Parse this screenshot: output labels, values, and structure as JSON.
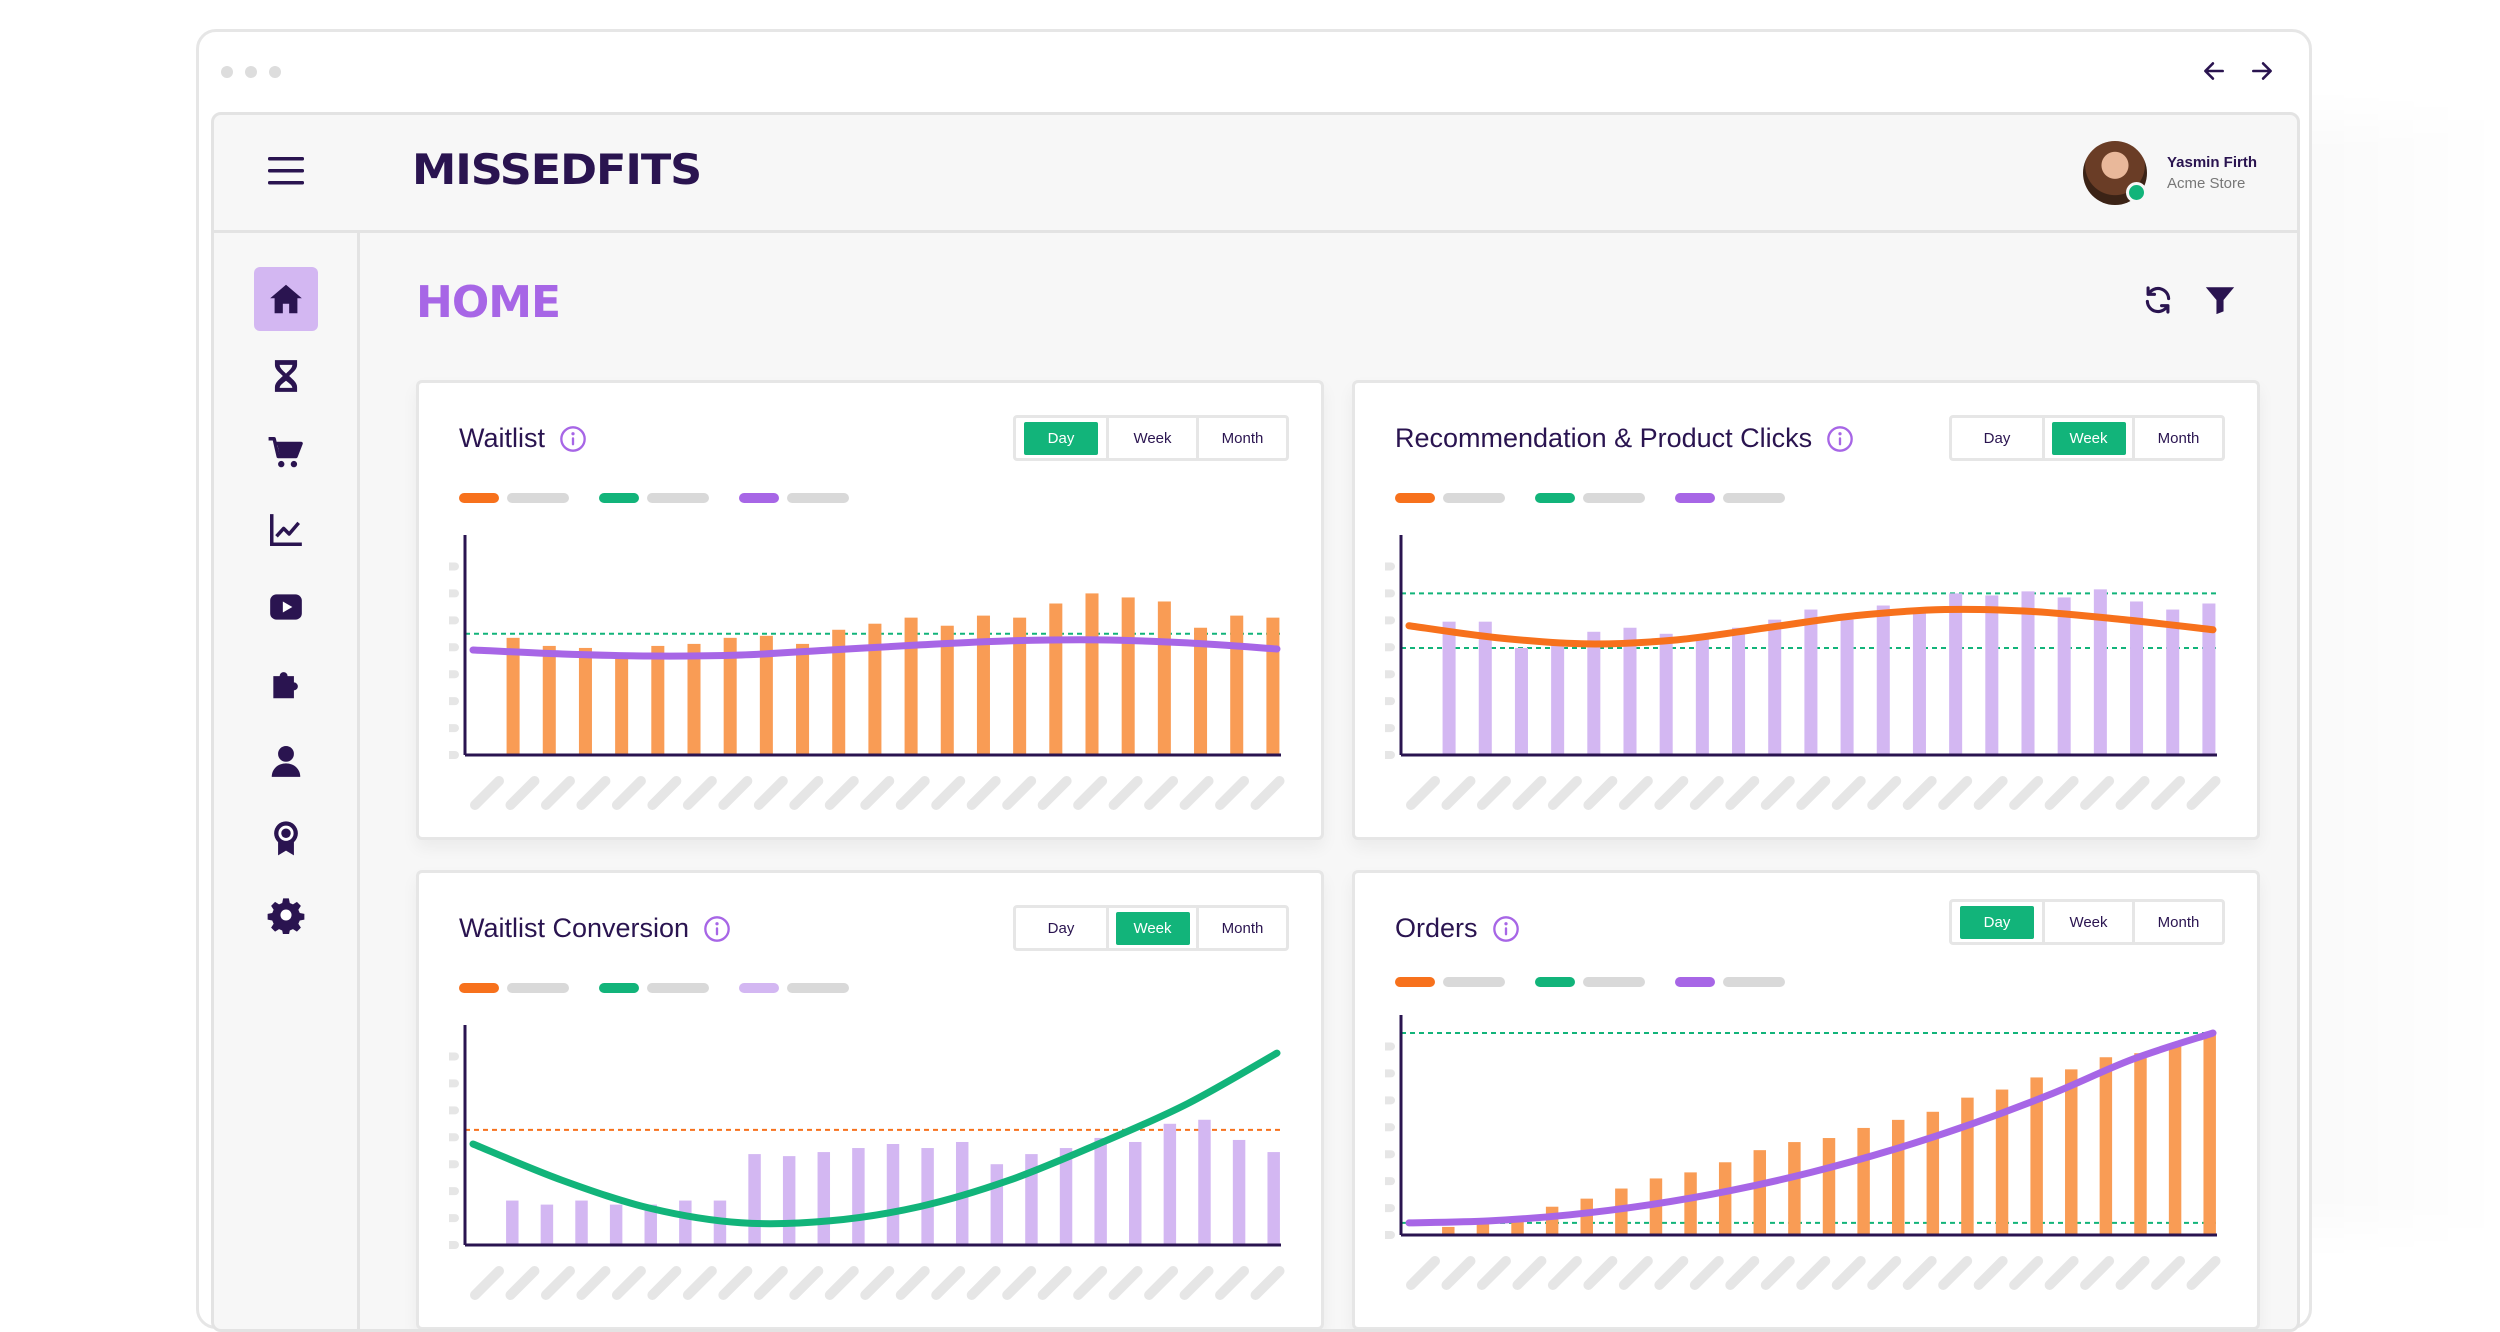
{
  "app": {
    "brand": "MISSEDFITS",
    "page_title": "HOME",
    "user": {
      "name": "Yasmin Firth",
      "store": "Acme Store"
    }
  },
  "colors": {
    "orange": "#f7711c",
    "orange_bar": "#f99c55",
    "green": "#12b47a",
    "purple": "#a766e6",
    "lilac_bar": "#d3b7f2",
    "navy": "#2a1450"
  },
  "sidebar": {
    "items": [
      {
        "icon": "home-icon",
        "active": true
      },
      {
        "icon": "hourglass-icon",
        "active": false
      },
      {
        "icon": "cart-icon",
        "active": false
      },
      {
        "icon": "line-chart-icon",
        "active": false
      },
      {
        "icon": "video-icon",
        "active": false
      },
      {
        "icon": "puzzle-icon",
        "active": false
      },
      {
        "icon": "user-icon",
        "active": false
      },
      {
        "icon": "badge-icon",
        "active": false
      },
      {
        "icon": "gear-icon",
        "active": false
      }
    ]
  },
  "toolbar": {
    "icons": [
      "refresh-icon",
      "filter-icon"
    ]
  },
  "segment_labels": [
    "Day",
    "Week",
    "Month"
  ],
  "cards": [
    {
      "title": "Waitlist",
      "active_period": "Day"
    },
    {
      "title": "Recommendation & Product Clicks",
      "active_period": "Week"
    },
    {
      "title": "Waitlist Conversion",
      "active_period": "Week"
    },
    {
      "title": "Orders",
      "active_period": "Day"
    }
  ],
  "chart_data": [
    {
      "type": "bar",
      "bar_color": "orange_bar",
      "line_color": "purple",
      "values": [
        58,
        54,
        53,
        50,
        54,
        55,
        58,
        59,
        55,
        62,
        65,
        68,
        64,
        69,
        68,
        75,
        80,
        78,
        76,
        63,
        69,
        68
      ],
      "line": [
        52,
        50,
        49,
        49.5,
        52,
        54.5,
        56.5,
        57,
        55.5,
        52.5
      ],
      "reference_lines": [
        {
          "value": 60,
          "color": "green"
        }
      ],
      "ylim": [
        0,
        100
      ]
    },
    {
      "type": "bar",
      "bar_color": "lilac_bar",
      "line_color": "orange",
      "values": [
        66,
        66,
        53,
        57,
        61,
        63,
        60,
        58,
        63,
        67,
        72,
        67,
        74,
        72,
        80,
        79,
        81,
        78,
        82,
        76,
        72,
        75
      ],
      "line": [
        64,
        58,
        55,
        57,
        63,
        69,
        72,
        71,
        67,
        62
      ],
      "reference_lines": [
        {
          "value": 80,
          "color": "green"
        },
        {
          "value": 53,
          "color": "green"
        }
      ],
      "ylim": [
        0,
        100
      ]
    },
    {
      "type": "bar",
      "bar_color": "lilac_bar",
      "line_color": "green",
      "values": [
        22,
        20,
        22,
        20,
        20,
        22,
        22,
        45,
        44,
        46,
        48,
        50,
        48,
        51,
        40,
        45,
        48,
        53,
        51,
        60,
        62,
        52,
        46
      ],
      "line": [
        50,
        32,
        18,
        11,
        12,
        19,
        32,
        50,
        70,
        95
      ],
      "reference_lines": [
        {
          "value": 57,
          "color": "orange"
        }
      ],
      "ylim": [
        0,
        100
      ]
    },
    {
      "type": "bar",
      "bar_color": "orange_bar",
      "line_color": "purple",
      "values": [
        4,
        8,
        9,
        14,
        18,
        23,
        28,
        31,
        36,
        42,
        46,
        48,
        53,
        57,
        61,
        68,
        72,
        78,
        82,
        88,
        90,
        94,
        100
      ],
      "line": [
        6,
        7,
        10,
        15,
        22,
        31,
        42,
        55,
        70,
        87,
        100
      ],
      "reference_lines": [
        {
          "value": 100,
          "color": "green"
        },
        {
          "value": 6,
          "color": "green"
        }
      ],
      "ylim": [
        0,
        100
      ]
    }
  ]
}
